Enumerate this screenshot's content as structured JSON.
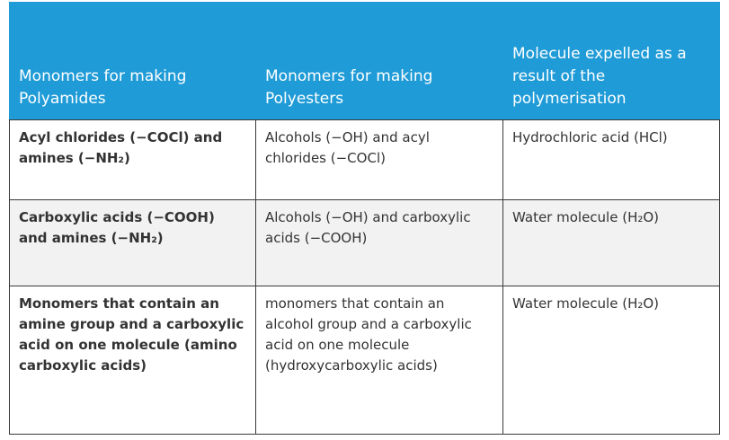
{
  "table": {
    "header": [
      "Monomers for making Polyamides",
      "Monomers for making Polyesters",
      "Molecule expelled as a result of the polymerisation"
    ],
    "rows": [
      [
        "Acyl chlorides (−COCl) and amines (−NH₂)",
        "Alcohols (−OH) and acyl chlorides (−COCl)",
        "Hydrochloric acid (HCl)"
      ],
      [
        "Carboxylic acids (−COOH) and amines (−NH₂)",
        "Alcohols (−OH) and carboxylic acids (−COOH)",
        "Water molecule (H₂O)"
      ],
      [
        "Monomers that contain an amine group and a carboxylic acid on one molecule (amino carboxylic acids)",
        "monomers that contain an alcohol group and a carboxylic acid on one molecule (hydroxycarboxylic acids)",
        "Water molecule (H₂O)"
      ]
    ]
  }
}
